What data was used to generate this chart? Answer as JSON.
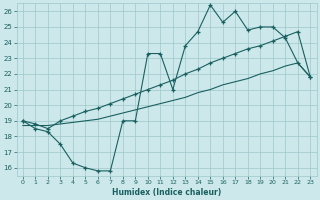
{
  "xlabel": "Humidex (Indice chaleur)",
  "bg_color": "#cce8ea",
  "line_color": "#1a6060",
  "grid_color": "#9ec8cc",
  "xlim": [
    -0.5,
    23.5
  ],
  "ylim": [
    15.5,
    26.5
  ],
  "xticks": [
    0,
    1,
    2,
    3,
    4,
    5,
    6,
    7,
    8,
    9,
    10,
    11,
    12,
    13,
    14,
    15,
    16,
    17,
    18,
    19,
    20,
    21,
    22,
    23
  ],
  "yticks": [
    16,
    17,
    18,
    19,
    20,
    21,
    22,
    23,
    24,
    25,
    26
  ],
  "line1_x": [
    0,
    1,
    2,
    3,
    4,
    5,
    6,
    7,
    8,
    9,
    10,
    11,
    12,
    13,
    14,
    15,
    16,
    17,
    18,
    19,
    20,
    21,
    22,
    23
  ],
  "line1_y": [
    19.0,
    18.5,
    18.3,
    17.5,
    16.3,
    16.0,
    15.8,
    15.8,
    19.0,
    19.0,
    23.3,
    23.3,
    21.0,
    23.8,
    24.7,
    26.4,
    25.3,
    26.0,
    24.8,
    25.0,
    25.0,
    24.3,
    22.7,
    21.8
  ],
  "line2_x": [
    0,
    1,
    2,
    3,
    4,
    5,
    6,
    7,
    8,
    9,
    10,
    11,
    12,
    13,
    14,
    15,
    16,
    17,
    18,
    19,
    20,
    21,
    22,
    23
  ],
  "line2_y": [
    18.7,
    18.7,
    18.7,
    18.8,
    18.9,
    19.0,
    19.1,
    19.3,
    19.5,
    19.7,
    19.9,
    20.1,
    20.3,
    20.5,
    20.8,
    21.0,
    21.3,
    21.5,
    21.7,
    22.0,
    22.2,
    22.5,
    22.7,
    21.8
  ],
  "line3_x": [
    0,
    1,
    2,
    3,
    4,
    5,
    6,
    7,
    8,
    9,
    10,
    11,
    12,
    13,
    14,
    15,
    16,
    17,
    18,
    19,
    20,
    21,
    22,
    23
  ],
  "line3_y": [
    19.0,
    18.8,
    18.5,
    19.0,
    19.3,
    19.6,
    19.8,
    20.1,
    20.4,
    20.7,
    21.0,
    21.3,
    21.6,
    22.0,
    22.3,
    22.7,
    23.0,
    23.3,
    23.6,
    23.8,
    24.1,
    24.4,
    24.7,
    21.8
  ]
}
